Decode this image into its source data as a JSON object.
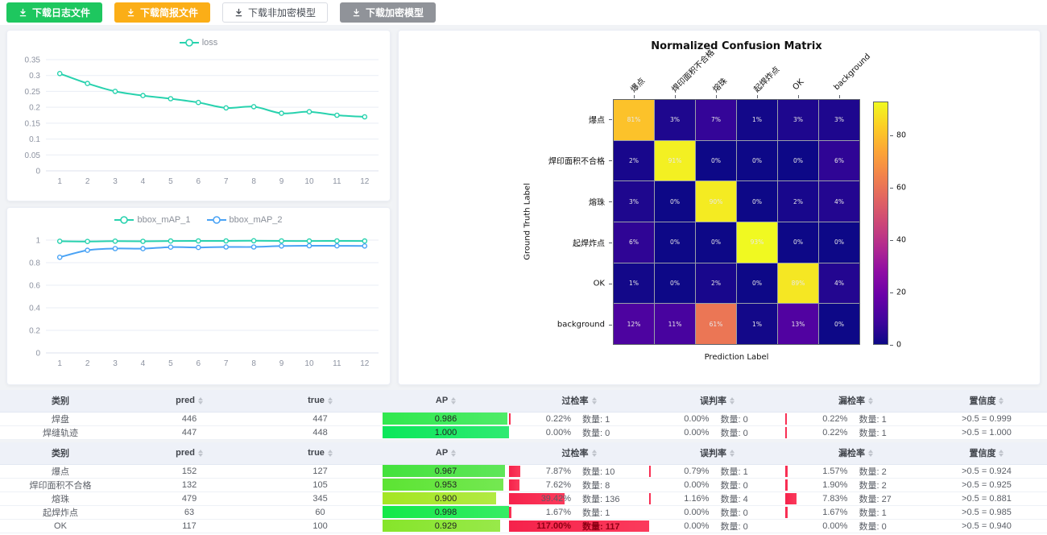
{
  "toolbar": {
    "buttons": [
      {
        "label": "下载日志文件",
        "variant": "green"
      },
      {
        "label": "下载简报文件",
        "variant": "orange"
      },
      {
        "label": "下载非加密模型",
        "variant": "plain"
      },
      {
        "label": "下载加密模型",
        "variant": "gray"
      }
    ]
  },
  "colors": {
    "teal_series": "#28d2ae",
    "blue_series": "#4aa3f5",
    "rate_bar_red": "#fb2a4d",
    "green_button": "#1ec75f",
    "orange_button": "#fbae17",
    "gray_button": "#909399"
  },
  "chart_data": [
    {
      "type": "line",
      "title": "",
      "x": [
        1,
        2,
        3,
        4,
        5,
        6,
        7,
        8,
        9,
        10,
        11,
        12
      ],
      "series": [
        {
          "name": "loss",
          "color": "#28d2ae",
          "values": [
            0.306,
            0.275,
            0.25,
            0.237,
            0.227,
            0.215,
            0.198,
            0.202,
            0.181,
            0.186,
            0.175,
            0.17
          ]
        }
      ],
      "ylim": [
        0,
        0.35
      ],
      "yticks": [
        0,
        0.05,
        0.1,
        0.15,
        0.2,
        0.25,
        0.3,
        0.35
      ],
      "grid": true,
      "legend_position": "top"
    },
    {
      "type": "line",
      "title": "",
      "x": [
        1,
        2,
        3,
        4,
        5,
        6,
        7,
        8,
        9,
        10,
        11,
        12
      ],
      "series": [
        {
          "name": "bbox_mAP_1",
          "color": "#28d2ae",
          "values": [
            0.99,
            0.988,
            0.991,
            0.989,
            0.992,
            0.993,
            0.993,
            0.994,
            0.993,
            0.992,
            0.993,
            0.992
          ]
        },
        {
          "name": "bbox_mAP_2",
          "color": "#4aa3f5",
          "values": [
            0.848,
            0.91,
            0.925,
            0.924,
            0.938,
            0.935,
            0.939,
            0.939,
            0.948,
            0.95,
            0.949,
            0.948
          ]
        }
      ],
      "ylim": [
        0,
        1
      ],
      "yticks": [
        0,
        0.2,
        0.4,
        0.6,
        0.8,
        1
      ],
      "grid": true,
      "legend_position": "top"
    },
    {
      "type": "heatmap",
      "title": "Normalized Confusion Matrix",
      "xlabel": "Prediction Label",
      "ylabel": "Ground Truth Label",
      "labels": [
        "爆点",
        "焊印面积不合格",
        "熔珠",
        "起焊炸点",
        "OK",
        "background"
      ],
      "matrix_percent": [
        [
          81,
          3,
          7,
          1,
          3,
          3
        ],
        [
          2,
          91,
          0,
          0,
          0,
          6
        ],
        [
          3,
          0,
          90,
          0,
          2,
          4
        ],
        [
          6,
          0,
          0,
          93,
          0,
          0
        ],
        [
          1,
          0,
          2,
          0,
          89,
          4
        ],
        [
          12,
          11,
          61,
          1,
          13,
          0
        ]
      ],
      "vmax": 93,
      "colormap": "plasma",
      "colorbar_ticks": [
        0,
        20,
        40,
        60,
        80
      ],
      "legend_position": "right-colorbar"
    }
  ],
  "tables": [
    {
      "headers": [
        {
          "label": "类别",
          "sortable": false
        },
        {
          "label": "pred",
          "sortable": true
        },
        {
          "label": "true",
          "sortable": true
        },
        {
          "label": "AP",
          "sortable": true
        },
        {
          "label": "过检率",
          "sortable": true
        },
        {
          "label": "误判率",
          "sortable": true
        },
        {
          "label": "漏检率",
          "sortable": true
        },
        {
          "label": "置信度",
          "sortable": true
        }
      ],
      "rows": [
        {
          "category": "焊盘",
          "pred": "446",
          "true": "447",
          "ap": "0.986",
          "ap_pct": 98.6,
          "ap_color": "#30e84e",
          "over_rate": "0.22%",
          "over_count": "数量: 1",
          "over_pct": 0.22,
          "over_alert": false,
          "mis_rate": "0.00%",
          "mis_count": "数量: 0",
          "mis_pct": 0,
          "miss_rate": "0.22%",
          "miss_count": "数量: 1",
          "miss_pct": 0.22,
          "conf": ">0.5 = 0.999"
        },
        {
          "category": "焊缝轨迹",
          "pred": "447",
          "true": "448",
          "ap": "1.000",
          "ap_pct": 100,
          "ap_color": "#0be75a",
          "over_rate": "0.00%",
          "over_count": "数量: 0",
          "over_pct": 0,
          "over_alert": false,
          "mis_rate": "0.00%",
          "mis_count": "数量: 0",
          "mis_pct": 0,
          "miss_rate": "0.22%",
          "miss_count": "数量: 1",
          "miss_pct": 0.22,
          "conf": ">0.5 = 1.000"
        }
      ]
    },
    {
      "headers": [
        {
          "label": "类别",
          "sortable": false
        },
        {
          "label": "pred",
          "sortable": true
        },
        {
          "label": "true",
          "sortable": true
        },
        {
          "label": "AP",
          "sortable": true
        },
        {
          "label": "过检率",
          "sortable": true
        },
        {
          "label": "误判率",
          "sortable": true
        },
        {
          "label": "漏检率",
          "sortable": true
        },
        {
          "label": "置信度",
          "sortable": true
        }
      ],
      "rows": [
        {
          "category": "爆点",
          "pred": "152",
          "true": "127",
          "ap": "0.967",
          "ap_pct": 96.7,
          "ap_color": "#43e23c",
          "over_rate": "7.87%",
          "over_count": "数量: 10",
          "over_pct": 7.87,
          "over_alert": false,
          "mis_rate": "0.79%",
          "mis_count": "数量: 1",
          "mis_pct": 0.79,
          "miss_rate": "1.57%",
          "miss_count": "数量: 2",
          "miss_pct": 1.57,
          "conf": ">0.5 = 0.924"
        },
        {
          "category": "焊印面积不合格",
          "pred": "132",
          "true": "105",
          "ap": "0.953",
          "ap_pct": 95.3,
          "ap_color": "#5ce433",
          "over_rate": "7.62%",
          "over_count": "数量: 8",
          "over_pct": 7.62,
          "over_alert": false,
          "mis_rate": "0.00%",
          "mis_count": "数量: 0",
          "mis_pct": 0,
          "miss_rate": "1.90%",
          "miss_count": "数量: 2",
          "miss_pct": 1.9,
          "conf": ">0.5 = 0.925"
        },
        {
          "category": "熔珠",
          "pred": "479",
          "true": "345",
          "ap": "0.900",
          "ap_pct": 90,
          "ap_color": "#a4e622",
          "over_rate": "39.42%",
          "over_count": "数量: 136",
          "over_pct": 39.42,
          "over_alert": false,
          "mis_rate": "1.16%",
          "mis_count": "数量: 4",
          "mis_pct": 1.16,
          "miss_rate": "7.83%",
          "miss_count": "数量: 27",
          "miss_pct": 7.83,
          "conf": ">0.5 = 0.881"
        },
        {
          "category": "起焊炸点",
          "pred": "63",
          "true": "60",
          "ap": "0.998",
          "ap_pct": 99.8,
          "ap_color": "#13e949",
          "over_rate": "1.67%",
          "over_count": "数量: 1",
          "over_pct": 1.67,
          "over_alert": false,
          "mis_rate": "0.00%",
          "mis_count": "数量: 0",
          "mis_pct": 0,
          "miss_rate": "1.67%",
          "miss_count": "数量: 1",
          "miss_pct": 1.67,
          "conf": ">0.5 = 0.985"
        },
        {
          "category": "OK",
          "pred": "117",
          "true": "100",
          "ap": "0.929",
          "ap_pct": 92.9,
          "ap_color": "#86e52a",
          "over_rate": "117.00%",
          "over_count": "数量: 117",
          "over_pct": 117,
          "over_alert": true,
          "mis_rate": "0.00%",
          "mis_count": "数量: 0",
          "mis_pct": 0,
          "miss_rate": "0.00%",
          "miss_count": "数量: 0",
          "miss_pct": 0,
          "conf": ">0.5 = 0.940"
        }
      ]
    }
  ]
}
